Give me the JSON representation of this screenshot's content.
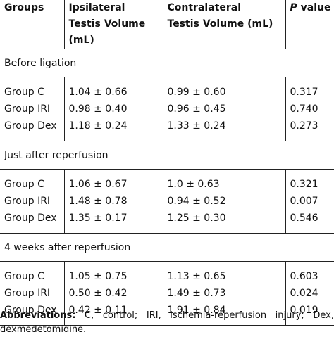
{
  "table": {
    "headers": [
      {
        "lines": [
          "Groups"
        ]
      },
      {
        "lines": [
          "Ipsilateral",
          "Testis Volume",
          "(mL)"
        ]
      },
      {
        "lines": [
          "Contralateral",
          "Testis Volume (mL)"
        ]
      },
      {
        "lines": [
          "P value"
        ]
      }
    ],
    "sections": [
      {
        "title": "Before ligation",
        "rows": [
          {
            "group": "Group C",
            "ipsi": "1.04 ± 0.66",
            "contra": "0.99 ± 0.60",
            "p": "0.317"
          },
          {
            "group": "Group IRI",
            "ipsi": "0.98 ± 0.40",
            "contra": "0.96 ± 0.45",
            "p": "0.740"
          },
          {
            "group": "Group Dex",
            "ipsi": "1.18 ± 0.24",
            "contra": "1.33 ± 0.24",
            "p": "0.273"
          }
        ]
      },
      {
        "title": "Just after reperfusion",
        "rows": [
          {
            "group": "Group C",
            "ipsi": "1.06 ± 0.67",
            "contra": "1.0 ± 0.63",
            "p": "0.321"
          },
          {
            "group": "Group IRI",
            "ipsi": "1.48 ± 0.78",
            "contra": "0.94 ± 0.52",
            "p": "0.007"
          },
          {
            "group": "Group Dex",
            "ipsi": "1.35 ± 0.17",
            "contra": "1.25 ± 0.30",
            "p": "0.546"
          }
        ]
      },
      {
        "title": "4 weeks after reperfusion",
        "rows": [
          {
            "group": "Group C",
            "ipsi": "1.05 ± 0.75",
            "contra": "1.13 ± 0.65",
            "p": "0.603"
          },
          {
            "group": "Group IRI",
            "ipsi": "0.50 ± 0.42",
            "contra": "1.49 ± 0.73",
            "p": "0.024"
          },
          {
            "group": "Group Dex",
            "ipsi": "0.42 ± 0.11",
            "contra": "1.91 ± 0.84",
            "p": "0.019"
          }
        ]
      }
    ]
  },
  "footnote": {
    "label": "Abbreviations:",
    "text": "C, control; IRI, ischemia-reperfusion injury; Dex, dexmedetomidine."
  }
}
